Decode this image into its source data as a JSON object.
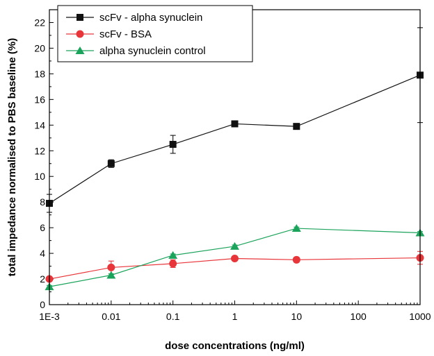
{
  "chart_data": {
    "type": "line",
    "xscale": "log",
    "x": [
      0.001,
      0.01,
      0.1,
      1,
      10,
      1000
    ],
    "xticks": [
      {
        "value": 0.001,
        "label": "1E-3"
      },
      {
        "value": 0.01,
        "label": "0.01"
      },
      {
        "value": 0.1,
        "label": "0.1"
      },
      {
        "value": 1,
        "label": "1"
      },
      {
        "value": 10,
        "label": "10"
      },
      {
        "value": 100,
        "label": "100"
      },
      {
        "value": 1000,
        "label": "1000"
      }
    ],
    "xlim": [
      0.001,
      1000
    ],
    "ylim": [
      0,
      23
    ],
    "yticks": [
      0,
      2,
      4,
      6,
      8,
      10,
      12,
      14,
      16,
      18,
      20,
      22
    ],
    "xlabel": "dose concentrations (ng/ml)",
    "ylabel": "total impedance normalised to PBS baseline (%)",
    "legend_position": "top-left",
    "series": [
      {
        "name": "scFv - alpha synuclein",
        "color": "#111111",
        "marker": "square",
        "values": [
          7.9,
          11.0,
          12.5,
          14.1,
          13.9,
          17.9
        ],
        "errors": [
          0.7,
          0.3,
          0.7,
          0.1,
          0.1,
          3.7
        ]
      },
      {
        "name": "scFv - BSA",
        "color": "#e8353a",
        "marker": "circle",
        "values": [
          2.0,
          2.9,
          3.2,
          3.6,
          3.5,
          3.65
        ],
        "errors": [
          0.1,
          0.5,
          0.3,
          0.1,
          0.2,
          0.5
        ]
      },
      {
        "name": "alpha synuclein control",
        "color": "#1aa35a",
        "marker": "triangle",
        "values": [
          1.4,
          2.3,
          3.85,
          4.55,
          5.95,
          5.6
        ],
        "errors": [
          0.1,
          0.1,
          0.1,
          0.1,
          0.1,
          0.1
        ]
      }
    ]
  }
}
